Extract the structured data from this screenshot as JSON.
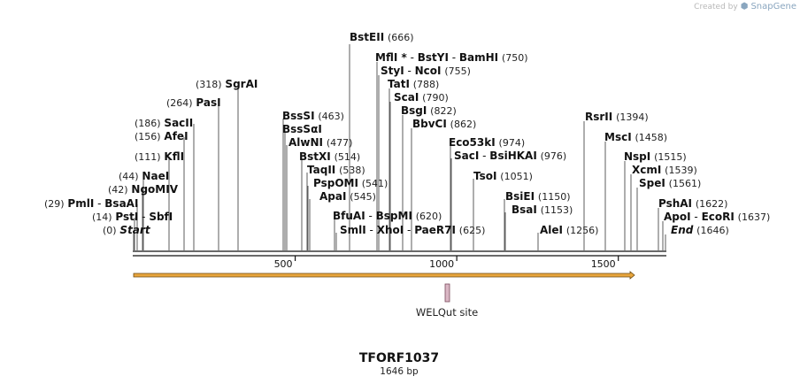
{
  "branding": {
    "created_by": "Created by",
    "app": "SnapGene"
  },
  "construct": {
    "name": "TFORF1037",
    "length_label": "1646 bp",
    "length": 1646
  },
  "ruler": {
    "ticks": [
      500,
      1000,
      1500
    ]
  },
  "feature": {
    "label": "WELQut site"
  },
  "sites": [
    {
      "pos": "(0)",
      "names": [
        "Start"
      ],
      "italic": true
    },
    {
      "pos": "(14)",
      "names": [
        "PstI",
        "SbfI"
      ]
    },
    {
      "pos": "(29)",
      "names": [
        "PmlI",
        "BsaAI"
      ]
    },
    {
      "pos": "(42)",
      "names": [
        "NgoMIV"
      ]
    },
    {
      "pos": "(44)",
      "names": [
        "NaeI"
      ]
    },
    {
      "pos": "(111)",
      "names": [
        "KflI"
      ]
    },
    {
      "pos": "(156)",
      "names": [
        "AfeI"
      ]
    },
    {
      "pos": "(186)",
      "names": [
        "SacII"
      ]
    },
    {
      "pos": "(264)",
      "names": [
        "PasI"
      ]
    },
    {
      "pos": "(318)",
      "names": [
        "SgrAI"
      ]
    },
    {
      "pos": "(463)",
      "names": [
        "BssSI"
      ]
    },
    {
      "pos": "",
      "names": [
        "BssSαI"
      ]
    },
    {
      "pos": "(477)",
      "names": [
        "AlwNI"
      ]
    },
    {
      "pos": "(514)",
      "names": [
        "BstXI"
      ]
    },
    {
      "pos": "(538)",
      "names": [
        "TaqII"
      ]
    },
    {
      "pos": "(541)",
      "names": [
        "PspOMI"
      ]
    },
    {
      "pos": "(545)",
      "names": [
        "ApaI"
      ]
    },
    {
      "pos": "(620)",
      "names": [
        "BfuAI",
        "BspMI"
      ]
    },
    {
      "pos": "(625)",
      "names": [
        "SmlI",
        "XhoI",
        "PaeR7I"
      ]
    },
    {
      "pos": "(666)",
      "names": [
        "BstEII"
      ]
    },
    {
      "pos": "(750)",
      "names": [
        "MflI *",
        "BstYI",
        "BamHI"
      ]
    },
    {
      "pos": "(755)",
      "names": [
        "StyI",
        "NcoI"
      ]
    },
    {
      "pos": "(788)",
      "names": [
        "TatI"
      ]
    },
    {
      "pos": "(790)",
      "names": [
        "ScaI"
      ]
    },
    {
      "pos": "(822)",
      "names": [
        "BsgI"
      ]
    },
    {
      "pos": "(862)",
      "names": [
        "BbvCI"
      ]
    },
    {
      "pos": "(974)",
      "names": [
        "Eco53kI"
      ]
    },
    {
      "pos": "(976)",
      "names": [
        "SacI",
        "BsiHKAI"
      ]
    },
    {
      "pos": "(1051)",
      "names": [
        "TsoI"
      ]
    },
    {
      "pos": "(1150)",
      "names": [
        "BsiEI"
      ]
    },
    {
      "pos": "(1153)",
      "names": [
        "BsaI"
      ]
    },
    {
      "pos": "(1256)",
      "names": [
        "AleI"
      ]
    },
    {
      "pos": "(1394)",
      "names": [
        "RsrII"
      ]
    },
    {
      "pos": "(1458)",
      "names": [
        "MscI"
      ]
    },
    {
      "pos": "(1515)",
      "names": [
        "NspI"
      ]
    },
    {
      "pos": "(1539)",
      "names": [
        "XcmI"
      ]
    },
    {
      "pos": "(1561)",
      "names": [
        "SpeI"
      ]
    },
    {
      "pos": "(1622)",
      "names": [
        "PshAI"
      ]
    },
    {
      "pos": "(1637)",
      "names": [
        "ApoI",
        "EcoRI"
      ]
    },
    {
      "pos": "(1646)",
      "names": [
        "End"
      ],
      "italic": true
    }
  ],
  "colors": {
    "backbone": "#111111",
    "arrow_fill": "#e8a53c",
    "arrow_stroke": "#6b4a10",
    "feature": "#c9a0b0",
    "line": "#222222"
  }
}
